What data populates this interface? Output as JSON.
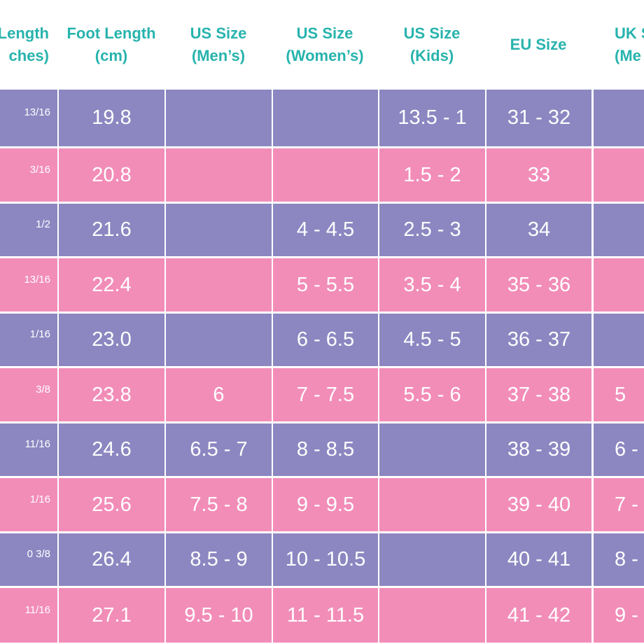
{
  "headers": [
    {
      "line1": "Length",
      "line2": "ches)"
    },
    {
      "line1": "Foot Length",
      "line2": "(cm)"
    },
    {
      "line1": "US Size",
      "line2": "(Men’s)"
    },
    {
      "line1": "US Size",
      "line2": "(Women’s)"
    },
    {
      "line1": "US Size",
      "line2": "(Kids)"
    },
    {
      "line1": "EU Size",
      "line2": ""
    },
    {
      "line1": "UK S",
      "line2": "(Me"
    }
  ],
  "rows": [
    {
      "color": "purple",
      "cells": [
        "13/16",
        "19.8",
        "",
        "",
        "13.5 - 1",
        "31 - 32",
        ""
      ]
    },
    {
      "color": "pink",
      "cells": [
        "3/16",
        "20.8",
        "",
        "",
        "1.5 - 2",
        "33",
        ""
      ]
    },
    {
      "color": "purple",
      "cells": [
        "1/2",
        "21.6",
        "",
        "4 - 4.5",
        "2.5 - 3",
        "34",
        ""
      ]
    },
    {
      "color": "pink",
      "cells": [
        "13/16",
        "22.4",
        "",
        "5 - 5.5",
        "3.5 - 4",
        "35 - 36",
        ""
      ]
    },
    {
      "color": "purple",
      "cells": [
        "1/16",
        "23.0",
        "",
        "6 - 6.5",
        "4.5 - 5",
        "36 - 37",
        ""
      ]
    },
    {
      "color": "pink",
      "cells": [
        "3/8",
        "23.8",
        "6",
        "7 - 7.5",
        "5.5 - 6",
        "37 - 38",
        "5"
      ]
    },
    {
      "color": "purple",
      "cells": [
        "11/16",
        "24.6",
        "6.5 - 7",
        "8 - 8.5",
        "",
        "38 - 39",
        "6 -"
      ]
    },
    {
      "color": "pink",
      "cells": [
        "1/16",
        "25.6",
        "7.5 - 8",
        "9 - 9.5",
        "",
        "39 - 40",
        "7 -"
      ]
    },
    {
      "color": "purple",
      "cells": [
        "0 3/8",
        "26.4",
        "8.5 - 9",
        "10 - 10.5",
        "",
        "40 - 41",
        "8 -"
      ]
    },
    {
      "color": "pink",
      "cells": [
        "11/16",
        "27.1",
        "9.5 - 10",
        "11 - 11.5",
        "",
        "41 - 42",
        "9 -"
      ]
    }
  ],
  "colors": {
    "purple": "#8c87c1",
    "pink": "#f28db8",
    "header_text": "#27b3ad",
    "cell_text": "#ffffff"
  }
}
